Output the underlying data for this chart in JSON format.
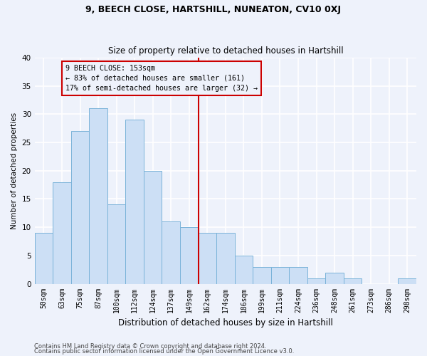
{
  "title1": "9, BEECH CLOSE, HARTSHILL, NUNEATON, CV10 0XJ",
  "title2": "Size of property relative to detached houses in Hartshill",
  "xlabel": "Distribution of detached houses by size in Hartshill",
  "ylabel": "Number of detached properties",
  "bin_labels": [
    "50sqm",
    "63sqm",
    "75sqm",
    "87sqm",
    "100sqm",
    "112sqm",
    "124sqm",
    "137sqm",
    "149sqm",
    "162sqm",
    "174sqm",
    "186sqm",
    "199sqm",
    "211sqm",
    "224sqm",
    "236sqm",
    "248sqm",
    "261sqm",
    "273sqm",
    "286sqm",
    "298sqm"
  ],
  "bar_heights": [
    9,
    18,
    27,
    31,
    14,
    29,
    20,
    11,
    10,
    9,
    9,
    5,
    3,
    3,
    3,
    1,
    2,
    1,
    0,
    0,
    1
  ],
  "bar_color": "#ccdff5",
  "bar_edge_color": "#7ab3d9",
  "reference_line_index": 8,
  "annotation_line1": "9 BEECH CLOSE: 153sqm",
  "annotation_line2": "← 83% of detached houses are smaller (161)",
  "annotation_line3": "17% of semi-detached houses are larger (32) →",
  "annotation_box_color": "#cc0000",
  "ylim": [
    0,
    40
  ],
  "yticks": [
    0,
    5,
    10,
    15,
    20,
    25,
    30,
    35,
    40
  ],
  "footer1": "Contains HM Land Registry data © Crown copyright and database right 2024.",
  "footer2": "Contains public sector information licensed under the Open Government Licence v3.0.",
  "bg_color": "#eef2fb",
  "grid_color": "#ffffff",
  "title1_fontsize": 9,
  "title2_fontsize": 8.5,
  "xlabel_fontsize": 8.5,
  "ylabel_fontsize": 7.5,
  "tick_fontsize": 7,
  "footer_fontsize": 6
}
